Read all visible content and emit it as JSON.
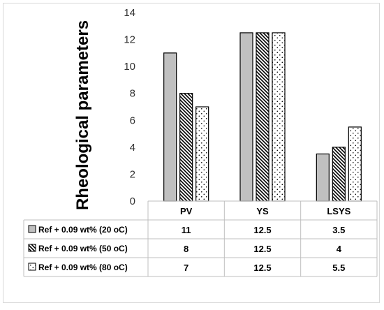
{
  "chart_data": {
    "type": "bar",
    "ylabel": "Rheological parameters",
    "ylim": [
      0,
      14
    ],
    "yticks": [
      0,
      2,
      4,
      6,
      8,
      10,
      12,
      14
    ],
    "categories": [
      "PV",
      "YS",
      "LSYS"
    ],
    "series": [
      {
        "name": "Ref + 0.09 wt% (20 oC)",
        "values": [
          11,
          12.5,
          3.5
        ],
        "pattern": "solid-gray"
      },
      {
        "name": "Ref + 0.09 wt% (50 oC)",
        "values": [
          8,
          12.5,
          4
        ],
        "pattern": "diagonal-hatch"
      },
      {
        "name": "Ref + 0.09 wt% (80 oC)",
        "values": [
          7,
          12.5,
          5.5
        ],
        "pattern": "dots"
      }
    ],
    "data_table": true,
    "colors": {
      "series1_fill": "#c0c0c0",
      "outline": "#000000",
      "grid": "#bfbfbf"
    }
  }
}
